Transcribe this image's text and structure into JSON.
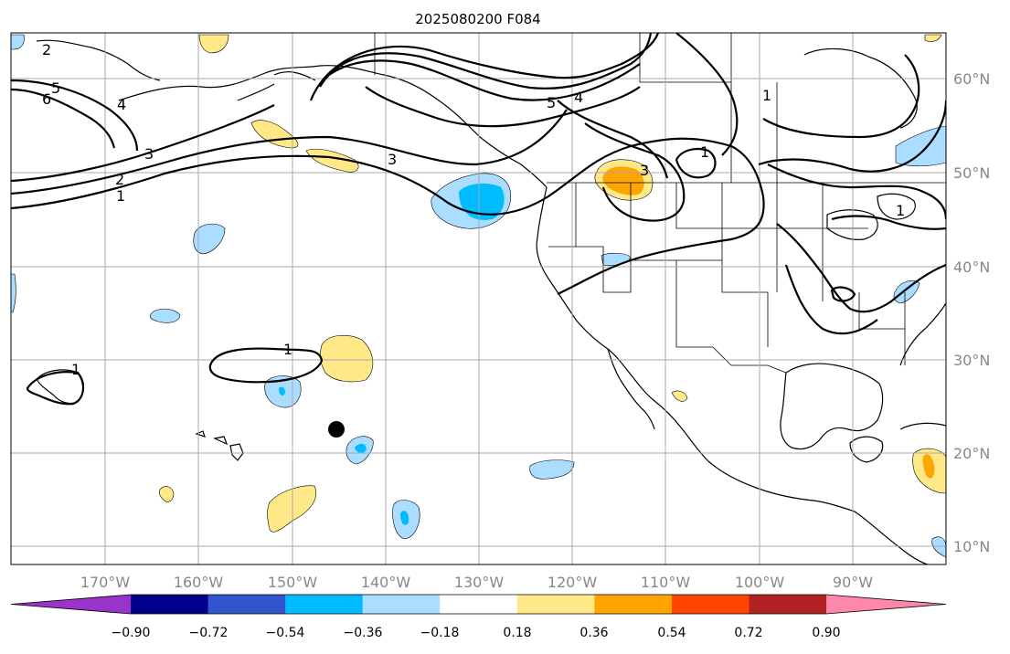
{
  "title": "2025080200 F084",
  "lon_labels": [
    "170°W",
    "160°W",
    "150°W",
    "140°W",
    "130°W",
    "120°W",
    "110°W",
    "100°W",
    "90°W"
  ],
  "lat_labels": [
    "60°N",
    "50°N",
    "40°N",
    "30°N",
    "20°N",
    "10°N"
  ],
  "colorbar": {
    "ticks": [
      "−0.90",
      "−0.72",
      "−0.54",
      "−0.36",
      "−0.18",
      "0.18",
      "0.36",
      "0.54",
      "0.72",
      "0.90"
    ],
    "colors": [
      "#9933cc",
      "#000088",
      "#3355cc",
      "#00bbff",
      "#aaddff",
      "#ffffff",
      "#ffe888",
      "#ffa500",
      "#ff4400",
      "#b22222",
      "#ff88aa"
    ]
  },
  "contour_labels": [
    "2",
    "5",
    "6",
    "4",
    "3",
    "2",
    "1",
    "3",
    "5",
    "4",
    "1",
    "1",
    "3",
    "1",
    "1",
    "1"
  ],
  "fill_colors": {
    "light_blue": "#aaddff",
    "blue": "#00bbff",
    "light_yellow": "#ffe888",
    "orange": "#ffa500"
  }
}
